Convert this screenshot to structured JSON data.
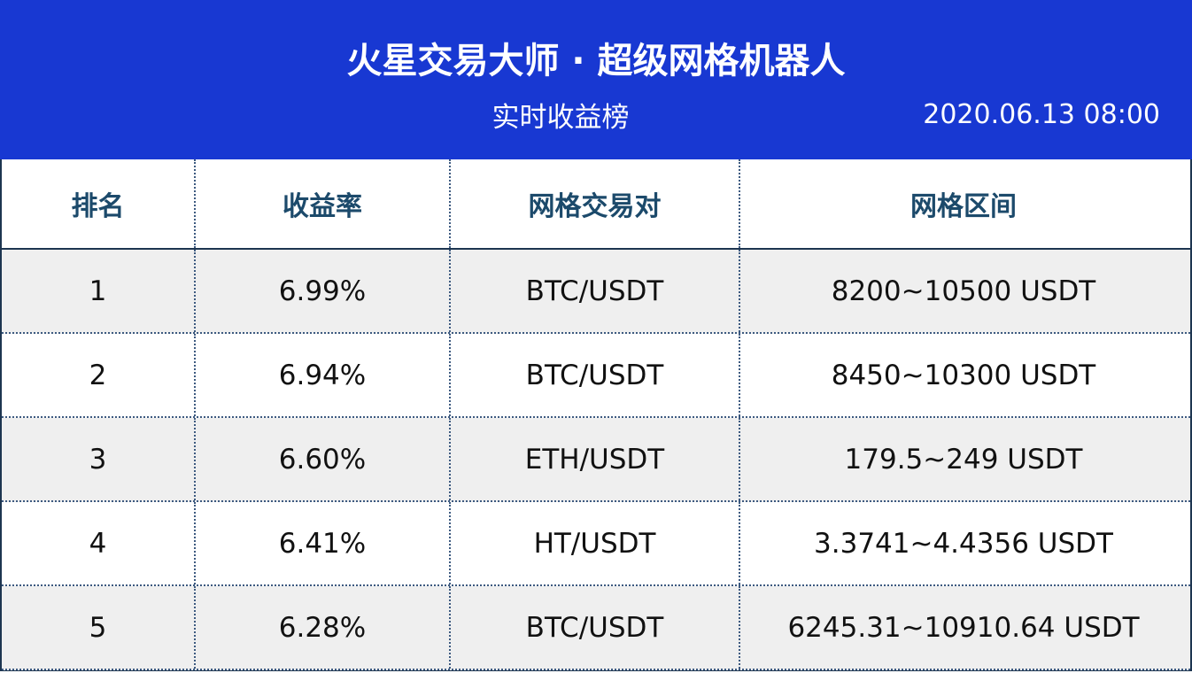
{
  "header": {
    "title": "火星交易大师 · 超级网格机器人",
    "subtitle": "实时收益榜",
    "timestamp": "2020.06.13 08:00"
  },
  "table": {
    "columns": [
      "排名",
      "收益率",
      "网格交易对",
      "网格区间"
    ],
    "rows": [
      [
        "1",
        "6.99%",
        "BTC/USDT",
        "8200~10500 USDT"
      ],
      [
        "2",
        "6.94%",
        "BTC/USDT",
        "8450~10300 USDT"
      ],
      [
        "3",
        "6.60%",
        "ETH/USDT",
        "179.5~249 USDT"
      ],
      [
        "4",
        "6.41%",
        "HT/USDT",
        "3.3741~4.4356 USDT"
      ],
      [
        "5",
        "6.28%",
        "BTC/USDT",
        "6245.31~10910.64 USDT"
      ]
    ]
  }
}
